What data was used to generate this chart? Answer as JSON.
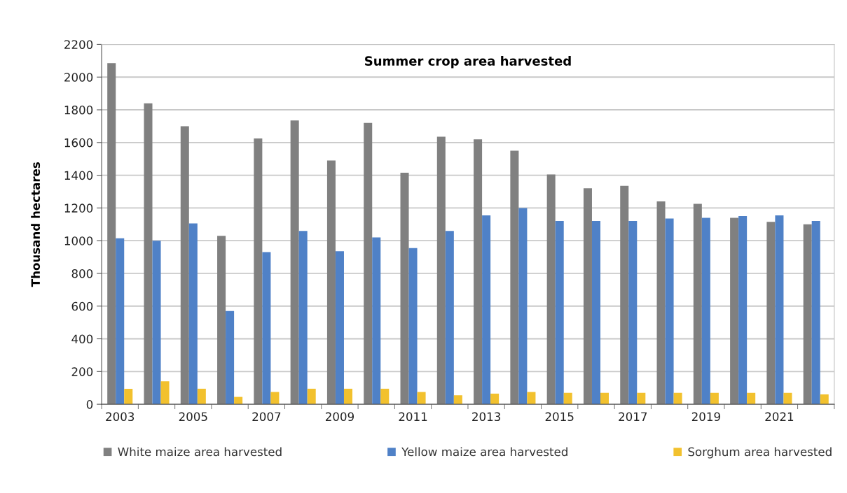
{
  "chart_data": {
    "type": "bar",
    "title": "Summer crop area harvested",
    "ylabel": "Thousand hectares",
    "categories": [
      "2003",
      null,
      "2005",
      null,
      "2007",
      null,
      "2009",
      null,
      "2011",
      null,
      "2013",
      null,
      "2015",
      null,
      "2017",
      null,
      "2019",
      null,
      "2021",
      null
    ],
    "series": [
      {
        "name": "White maize area harvested",
        "color": "#808080",
        "values": [
          2085,
          1840,
          1700,
          1030,
          1625,
          1735,
          1490,
          1720,
          1415,
          1635,
          1620,
          1550,
          1405,
          1320,
          1335,
          1240,
          1225,
          1140,
          1115,
          1100
        ]
      },
      {
        "name": "Yellow maize area harvested",
        "color": "#4f81c7",
        "values": [
          1015,
          1000,
          1105,
          570,
          930,
          1060,
          935,
          1020,
          955,
          1060,
          1155,
          1200,
          1120,
          1120,
          1120,
          1135,
          1140,
          1150,
          1155,
          1120
        ]
      },
      {
        "name": "Sorghum area harvested",
        "color": "#f2c12e",
        "values": [
          95,
          140,
          95,
          45,
          75,
          95,
          95,
          95,
          75,
          55,
          65,
          75,
          70,
          70,
          70,
          70,
          70,
          70,
          70,
          60
        ]
      }
    ],
    "ylim": [
      0,
      2200
    ],
    "yticks": [
      0,
      200,
      400,
      600,
      800,
      1000,
      1200,
      1400,
      1600,
      1800,
      2000,
      2200
    ],
    "grid": "y",
    "legend": "bottom"
  }
}
